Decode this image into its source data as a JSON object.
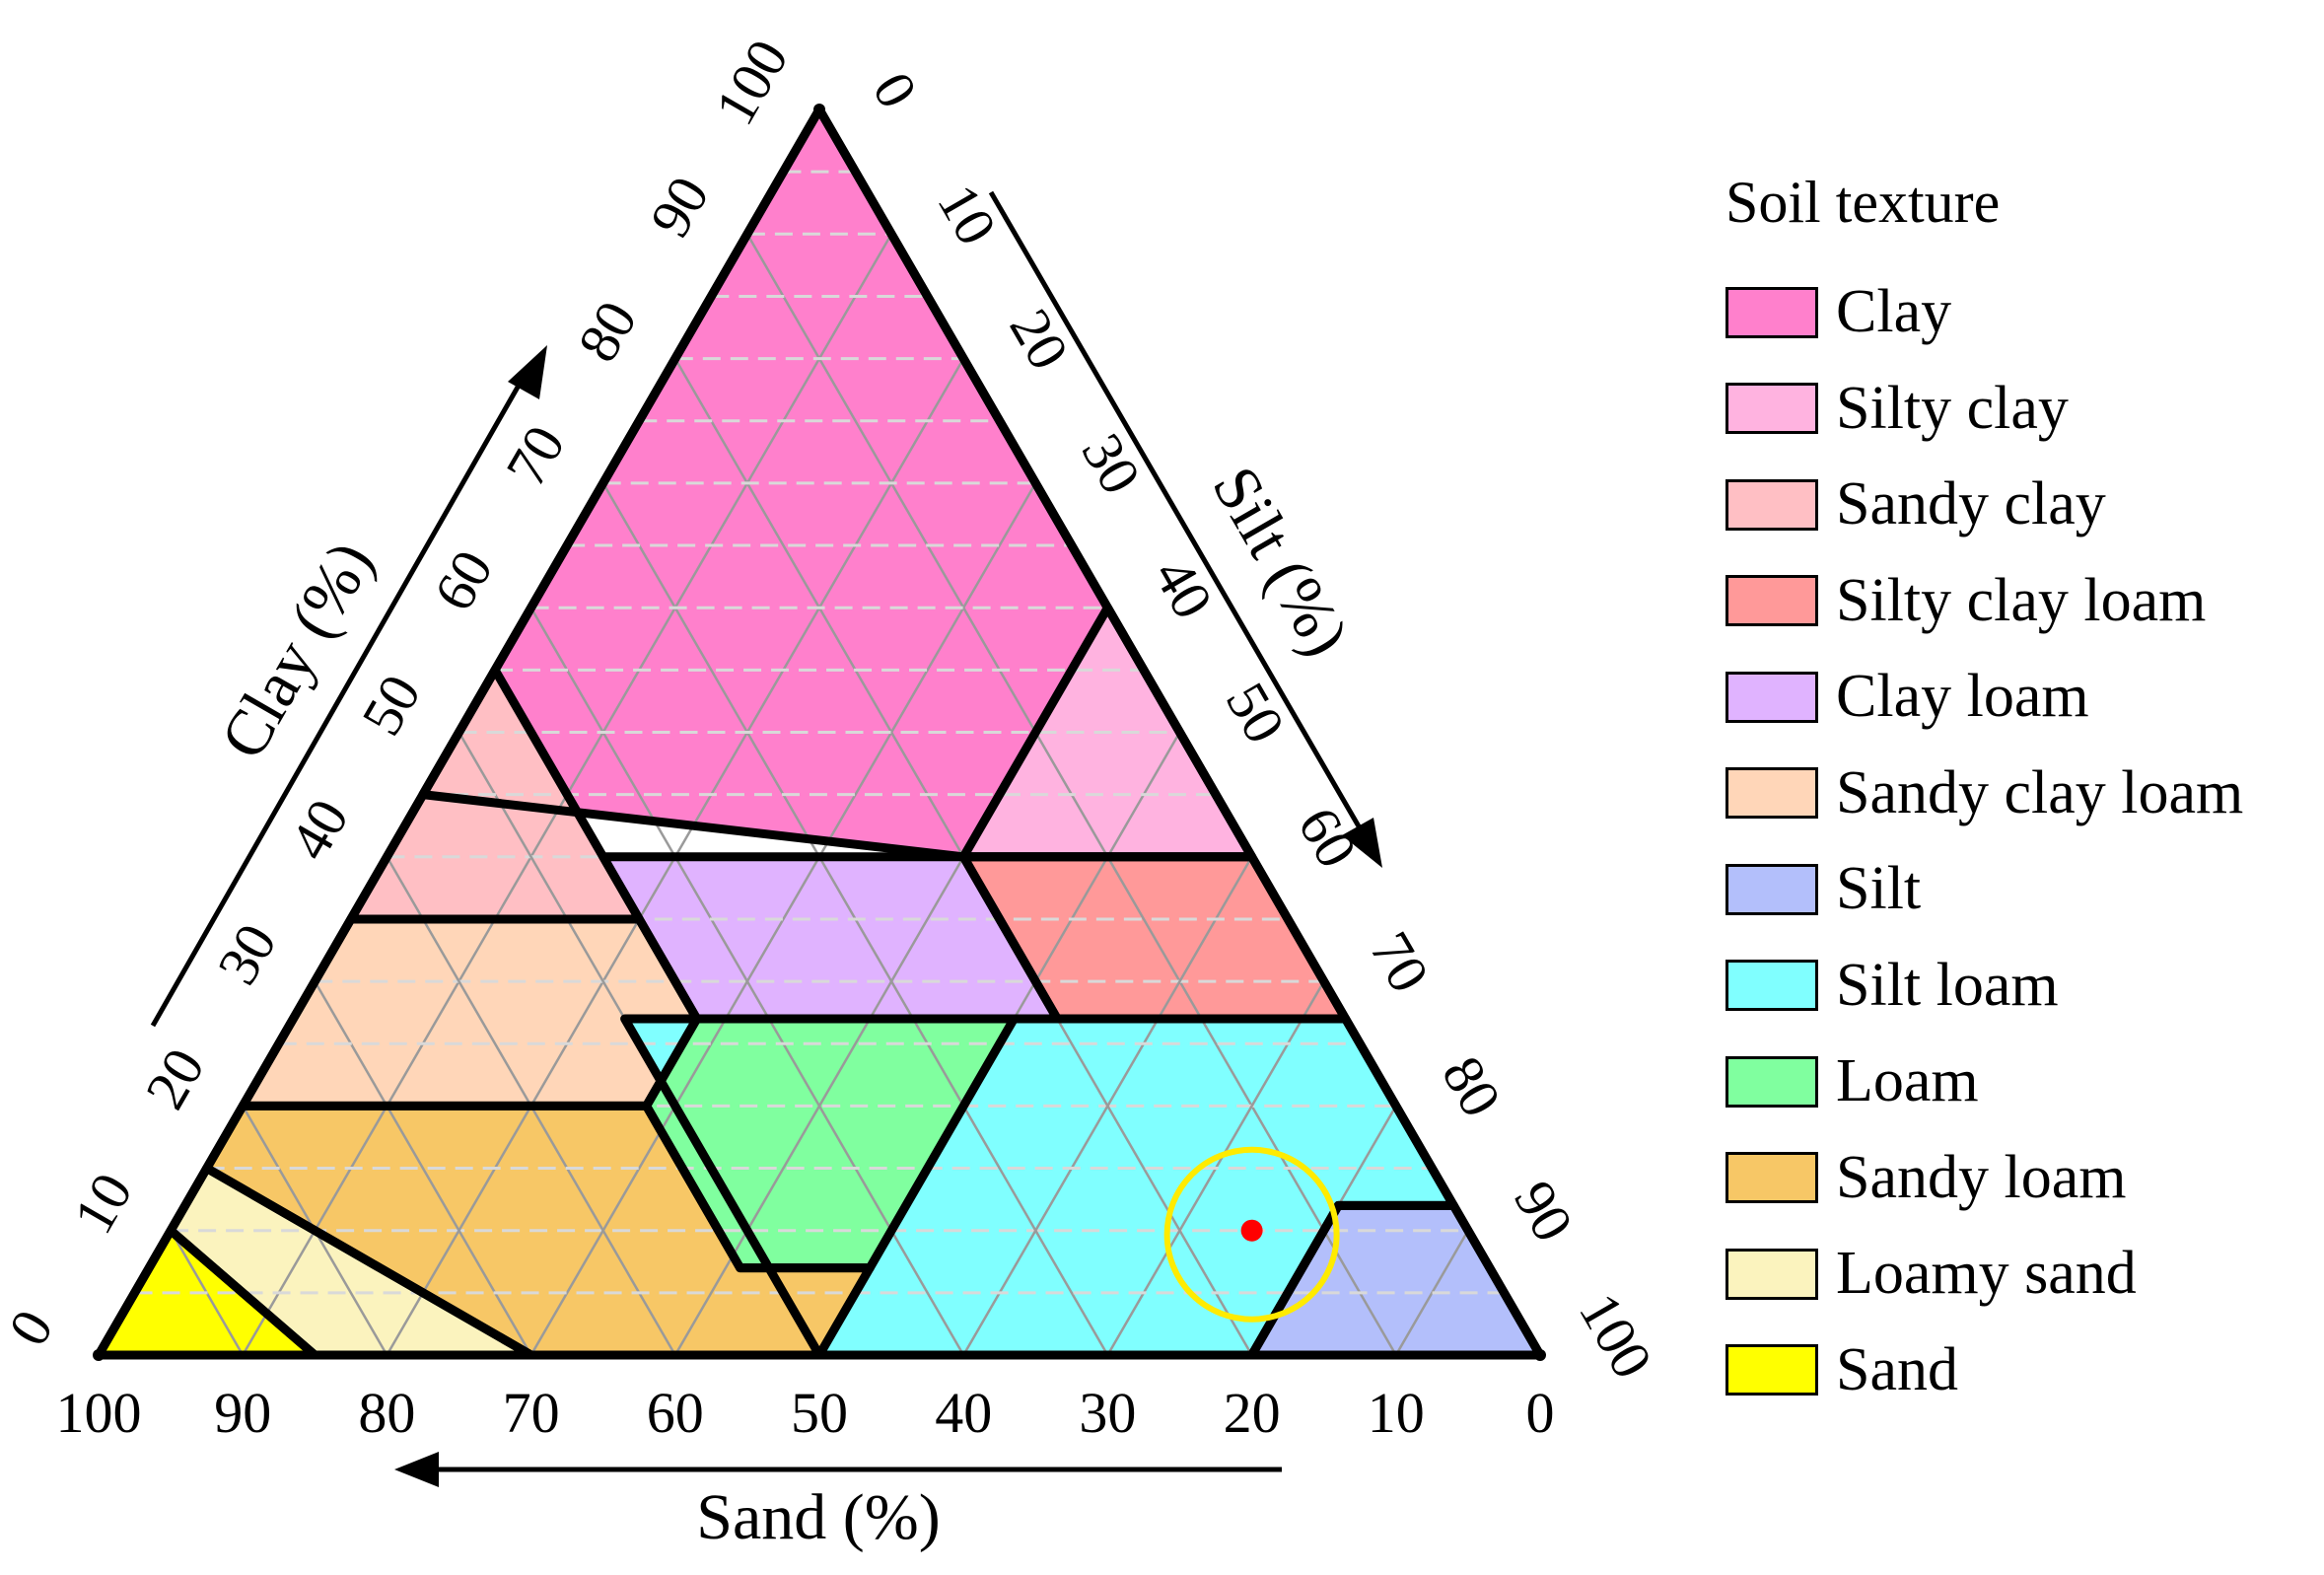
{
  "chart_data": {
    "type": "ternary",
    "axes": {
      "clay": {
        "label": "Clay (%)",
        "ticks": [
          "0",
          "10",
          "20",
          "30",
          "40",
          "50",
          "60",
          "70",
          "80",
          "90",
          "100"
        ]
      },
      "silt": {
        "label": "Silt (%)",
        "ticks": [
          "0",
          "10",
          "20",
          "30",
          "40",
          "50",
          "60",
          "70",
          "80",
          "90",
          "100"
        ]
      },
      "sand": {
        "label": "Sand (%)",
        "ticks": [
          "100",
          "90",
          "80",
          "70",
          "60",
          "50",
          "40",
          "30",
          "20",
          "10",
          "0"
        ]
      }
    },
    "grid": true,
    "legend": {
      "title": "Soil texture",
      "position": "right",
      "items": [
        {
          "label": "Clay",
          "color": "#ff80cc"
        },
        {
          "label": "Silty clay",
          "color": "#ffb3e0"
        },
        {
          "label": "Sandy clay",
          "color": "#ffbfc4"
        },
        {
          "label": "Silty clay loam",
          "color": "#ff9999"
        },
        {
          "label": "Clay loam",
          "color": "#e0b3ff"
        },
        {
          "label": "Sandy clay loam",
          "color": "#ffd6b8"
        },
        {
          "label": "Silt",
          "color": "#b3bffb"
        },
        {
          "label": "Silt loam",
          "color": "#80ffff"
        },
        {
          "label": "Loam",
          "color": "#80ff9f"
        },
        {
          "label": "Sandy loam",
          "color": "#f7c766"
        },
        {
          "label": "Loamy sand",
          "color": "#fbf3be"
        },
        {
          "label": "Sand",
          "color": "#ffff00"
        }
      ]
    },
    "regions": [
      {
        "name": "Clay",
        "polygon": [
          [
            40,
            60
          ],
          [
            40,
            40
          ],
          [
            45,
            55
          ],
          [
            55,
            45
          ],
          [
            100,
            0
          ],
          [
            60,
            0
          ],
          [
            40,
            0
          ],
          [
            40,
            15
          ],
          [
            45,
            10
          ]
        ],
        "vertices_clay_silt_sand": [
          [
            100,
            0,
            0
          ],
          [
            40,
            60,
            0
          ],
          [
            40,
            40,
            20
          ],
          [
            45,
            0,
            55
          ]
        ]
      },
      {
        "name": "Silty clay",
        "vertices_clay_silt_sand": [
          [
            60,
            40,
            0
          ],
          [
            40,
            60,
            0
          ],
          [
            40,
            40,
            20
          ]
        ]
      },
      {
        "name": "Sandy clay",
        "vertices_clay_silt_sand": [
          [
            55,
            0,
            45
          ],
          [
            35,
            0,
            65
          ],
          [
            35,
            20,
            45
          ]
        ]
      },
      {
        "name": "Silty clay loam",
        "vertices_clay_silt_sand": [
          [
            40,
            60,
            0
          ],
          [
            40,
            40,
            20
          ],
          [
            27,
            53,
            20
          ],
          [
            27,
            73,
            0
          ]
        ]
      },
      {
        "name": "Clay loam",
        "vertices_clay_silt_sand": [
          [
            40,
            40,
            20
          ],
          [
            40,
            15,
            45
          ],
          [
            27,
            28,
            45
          ],
          [
            27,
            53,
            20
          ]
        ]
      },
      {
        "name": "Sandy clay loam",
        "vertices_clay_silt_sand": [
          [
            35,
            0,
            65
          ],
          [
            35,
            20,
            45
          ],
          [
            27,
            28,
            45
          ],
          [
            20,
            28,
            52
          ],
          [
            20,
            0,
            80
          ]
        ]
      },
      {
        "name": "Silt",
        "vertices_clay_silt_sand": [
          [
            12,
            88,
            0
          ],
          [
            12,
            80,
            8
          ],
          [
            0,
            80,
            20
          ],
          [
            0,
            100,
            0
          ]
        ]
      },
      {
        "name": "Silt loam",
        "vertices_clay_silt_sand": [
          [
            27,
            73,
            0
          ],
          [
            27,
            23,
            50
          ],
          [
            0,
            50,
            50
          ],
          [
            0,
            80,
            20
          ],
          [
            12,
            80,
            8
          ],
          [
            12,
            88,
            0
          ]
        ]
      },
      {
        "name": "Loam",
        "vertices_clay_silt_sand": [
          [
            27,
            28,
            45
          ],
          [
            27,
            50,
            23
          ],
          [
            7,
            50,
            43
          ],
          [
            7,
            41,
            52
          ],
          [
            20,
            28,
            52
          ]
        ]
      },
      {
        "name": "Sandy loam",
        "vertices_clay_silt_sand": [
          [
            20,
            0,
            80
          ],
          [
            20,
            28,
            52
          ],
          [
            7,
            41,
            52
          ],
          [
            7,
            50,
            43
          ],
          [
            0,
            50,
            50
          ],
          [
            0,
            30,
            70
          ],
          [
            15,
            0,
            85
          ]
        ]
      },
      {
        "name": "Loamy sand",
        "vertices_clay_silt_sand": [
          [
            15,
            0,
            85
          ],
          [
            0,
            30,
            70
          ],
          [
            0,
            15,
            85
          ],
          [
            10,
            0,
            90
          ]
        ]
      },
      {
        "name": "Sand",
        "vertices_clay_silt_sand": [
          [
            10,
            0,
            90
          ],
          [
            0,
            15,
            85
          ],
          [
            0,
            0,
            100
          ]
        ]
      }
    ],
    "points": [
      {
        "clay": 10,
        "silt": 75,
        "sand": 15,
        "color": "#ff0000"
      }
    ],
    "highlight_circle": {
      "clay": 10,
      "silt": 75,
      "sand": 15,
      "color": "#ffeb00"
    }
  }
}
